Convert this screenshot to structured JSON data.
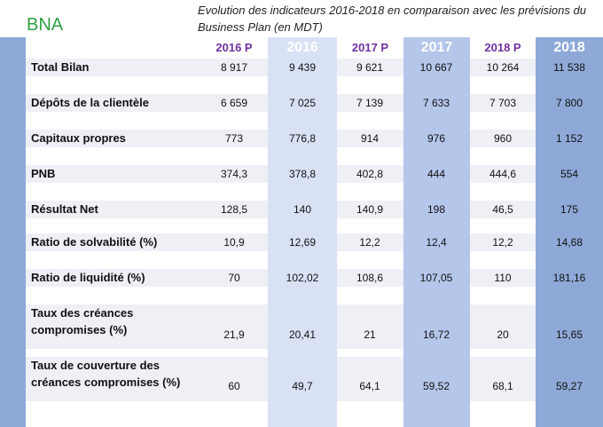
{
  "brand": "BNA",
  "subtitle": "Evolution des indicateurs 2016-2018 en comparaison avec les prévisions du Business Plan  (en MDT)",
  "columns": [
    "2016 P",
    "2016",
    "2017 P",
    "2017",
    "2018 P",
    "2018"
  ],
  "rows": [
    {
      "label": "Total Bilan",
      "values": [
        "8 917",
        "9 439",
        "9 621",
        "10 667",
        "10 264",
        "11 538"
      ]
    },
    {
      "label": "Dépôts de la clientèle",
      "values": [
        "6 659",
        "7 025",
        "7 139",
        "7 633",
        "7 703",
        "7 800"
      ]
    },
    {
      "label": "Capitaux propres",
      "values": [
        "773",
        "776,8",
        "914",
        "976",
        "960",
        "1 152"
      ]
    },
    {
      "label": "PNB",
      "values": [
        "374,3",
        "378,8",
        "402,8",
        "444",
        "444,6",
        "554"
      ]
    },
    {
      "label": "Résultat Net",
      "values": [
        "128,5",
        "140",
        "140,9",
        "198",
        "46,5",
        "175"
      ]
    },
    {
      "label": "Ratio de solvabilité (%)",
      "values": [
        "10,9",
        "12,69",
        "12,2",
        "12,4",
        "12,2",
        "14,68"
      ]
    },
    {
      "label": "Ratio de liquidité (%)",
      "values": [
        "70",
        "102,02",
        "108,6",
        "107,05",
        "110",
        "181,16"
      ]
    },
    {
      "label": "Taux des créances compromises (%)",
      "values": [
        "21,9",
        "20,41",
        "21",
        "16,72",
        "20",
        "15,65"
      ]
    },
    {
      "label": "Taux de couverture des créances compromises (%)",
      "values": [
        "60",
        "49,7",
        "64,1",
        "59,52",
        "68,1",
        "59,27"
      ]
    }
  ],
  "colors": {
    "brand": "#2ea043",
    "projection": "#7030a0",
    "accent": "#8ea9d8"
  }
}
